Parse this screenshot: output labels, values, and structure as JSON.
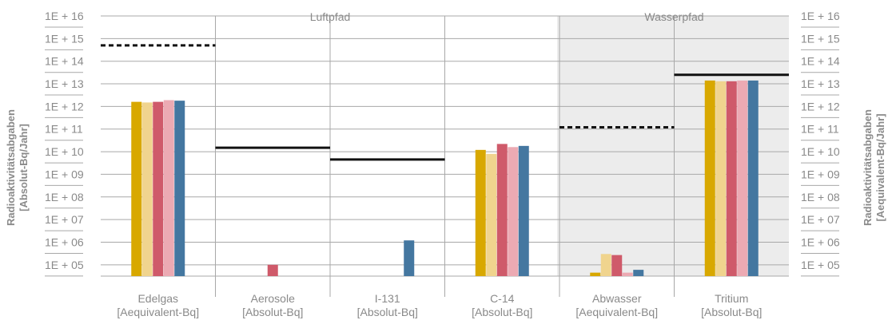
{
  "chart_data": {
    "type": "bar",
    "scale": "log",
    "ylim_exp": [
      4.5,
      16
    ],
    "y_ticks": [
      "1E + 05",
      "1E + 06",
      "1E + 07",
      "1E + 08",
      "1E + 09",
      "1E + 10",
      "1E + 11",
      "1E + 12",
      "1E + 13",
      "1E + 14",
      "1E + 15",
      "1E + 16"
    ],
    "ylabel_left": [
      "Radioaktivitätsabgaben",
      "[Absolut-Bq/Jahr]"
    ],
    "ylabel_right": [
      "Radioaktivitätsabgaben",
      "[Aequivalent-Bq/Jahr]"
    ],
    "groups": [
      {
        "label": "Luftpfad",
        "from": 0,
        "to": 3
      },
      {
        "label": "Wasserpfad",
        "from": 4,
        "to": 5
      }
    ],
    "categories": [
      {
        "name": "Edelgas",
        "unit": "[Aequivalent-Bq]"
      },
      {
        "name": "Aerosole",
        "unit": "[Absolut-Bq]"
      },
      {
        "name": "I-131",
        "unit": "[Absolut-Bq]"
      },
      {
        "name": "C-14",
        "unit": "[Absolut-Bq]"
      },
      {
        "name": "Abwasser",
        "unit": "[Aequivalent-Bq]"
      },
      {
        "name": "Tritium",
        "unit": "[Absolut-Bq]"
      }
    ],
    "colors": [
      "#d8a800",
      "#f0d48e",
      "#cf5a6a",
      "#ecaab3",
      "#4477a0"
    ],
    "series": [
      {
        "values": [
          1600000000000.0,
          null,
          null,
          12000000000.0,
          45000.0,
          14000000000000.0
        ]
      },
      {
        "values": [
          1500000000000.0,
          null,
          null,
          8000000000.0,
          300000.0,
          13000000000000.0
        ]
      },
      {
        "values": [
          1600000000000.0,
          100000.0,
          null,
          22000000000.0,
          270000.0,
          13000000000000.0
        ]
      },
      {
        "values": [
          1900000000000.0,
          null,
          null,
          16000000000.0,
          45000.0,
          14000000000000.0
        ]
      },
      {
        "values": [
          1800000000000.0,
          null,
          1200000.0,
          18000000000.0,
          60000.0,
          14000000000000.0
        ]
      }
    ],
    "limits": [
      {
        "value": 500000000000000.0,
        "style": "dashed"
      },
      {
        "value": 15000000000.0,
        "style": "solid"
      },
      {
        "value": 4500000000.0,
        "style": "solid"
      },
      {
        "value": null,
        "style": "none"
      },
      {
        "value": 120000000000.0,
        "style": "dashed"
      },
      {
        "value": 25000000000000.0,
        "style": "solid"
      }
    ]
  }
}
